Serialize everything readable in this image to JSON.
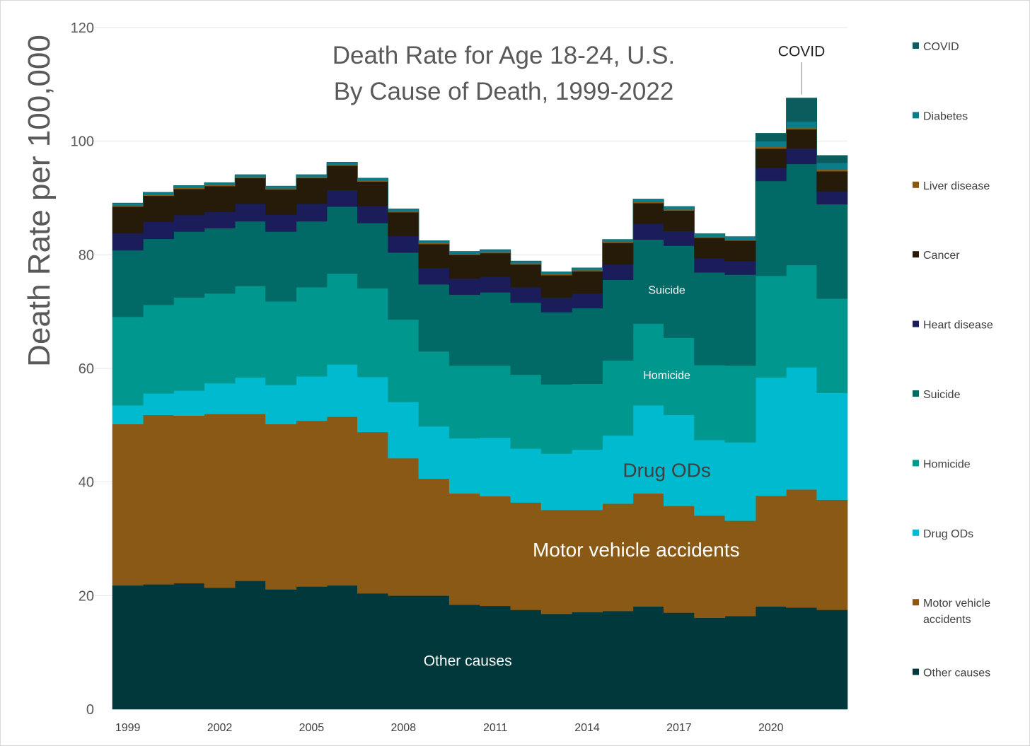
{
  "chart_data": {
    "type": "area",
    "title": [
      "Death Rate for Age 18-24, U.S.",
      "By Cause of Death, 1999-2022"
    ],
    "ylabel": "Death Rate per 100,000",
    "ylim": [
      0,
      120
    ],
    "yticks": [
      0,
      20,
      40,
      60,
      80,
      100,
      120
    ],
    "grid": true,
    "legend_position": "right",
    "x": [
      1999,
      2000,
      2001,
      2002,
      2003,
      2004,
      2005,
      2006,
      2007,
      2008,
      2009,
      2010,
      2011,
      2012,
      2013,
      2014,
      2015,
      2016,
      2017,
      2018,
      2019,
      2020,
      2021,
      2022
    ],
    "xtick_labels": [
      "1999",
      "2002",
      "2005",
      "2008",
      "2011",
      "2014",
      "2017",
      "2020"
    ],
    "series": [
      {
        "name": "Other causes",
        "color": "#00383b",
        "values": [
          21.8,
          22.0,
          22.2,
          21.4,
          22.6,
          21.1,
          21.6,
          21.8,
          20.4,
          20.0,
          20.0,
          18.4,
          18.2,
          17.5,
          16.8,
          17.1,
          17.3,
          18.1,
          17.0,
          16.1,
          16.4,
          18.1,
          17.9,
          17.5
        ]
      },
      {
        "name": "Motor vehicle accidents",
        "color": "#8a5915",
        "values": [
          28.4,
          29.8,
          29.5,
          30.6,
          29.4,
          29.1,
          29.2,
          29.7,
          28.4,
          24.2,
          20.6,
          19.6,
          19.3,
          18.9,
          18.3,
          18.0,
          18.9,
          19.9,
          18.8,
          18.0,
          16.8,
          19.5,
          20.8,
          19.4
        ]
      },
      {
        "name": "Drug ODs",
        "color": "#00bacf",
        "values": [
          3.3,
          3.8,
          4.4,
          5.4,
          6.4,
          6.9,
          7.8,
          9.2,
          9.7,
          9.9,
          9.2,
          9.7,
          10.3,
          9.5,
          9.9,
          10.6,
          12.0,
          15.5,
          16.0,
          13.3,
          13.8,
          20.8,
          21.5,
          18.8
        ]
      },
      {
        "name": "Homicide",
        "color": "#00978f",
        "values": [
          15.6,
          15.6,
          16.4,
          15.8,
          16.1,
          14.7,
          15.7,
          16.0,
          15.6,
          14.5,
          13.2,
          12.8,
          12.7,
          13.0,
          12.2,
          11.6,
          13.2,
          14.4,
          13.6,
          13.2,
          13.5,
          17.9,
          18.0,
          16.6
        ]
      },
      {
        "name": "Suicide",
        "color": "#016a66",
        "values": [
          11.7,
          11.6,
          11.6,
          11.5,
          11.4,
          12.3,
          11.6,
          11.8,
          11.5,
          11.8,
          11.8,
          12.5,
          12.9,
          12.7,
          12.7,
          13.3,
          14.2,
          14.8,
          16.2,
          16.3,
          16.0,
          16.7,
          17.8,
          16.6
        ]
      },
      {
        "name": "Heart disease",
        "color": "#1b1c5a",
        "values": [
          3.0,
          3.0,
          2.9,
          2.9,
          3.1,
          3.0,
          3.1,
          2.9,
          3.0,
          2.9,
          2.9,
          2.8,
          2.8,
          2.7,
          2.6,
          2.6,
          2.7,
          2.8,
          2.6,
          2.5,
          2.4,
          2.3,
          2.7,
          2.3
        ]
      },
      {
        "name": "Cancer",
        "color": "#261a09",
        "values": [
          4.7,
          4.6,
          4.6,
          4.5,
          4.5,
          4.4,
          4.5,
          4.3,
          4.3,
          4.2,
          4.2,
          4.2,
          4.1,
          4.0,
          3.9,
          3.9,
          3.8,
          3.6,
          3.6,
          3.6,
          3.6,
          3.4,
          3.4,
          3.5
        ]
      },
      {
        "name": "Liver disease",
        "color": "#8a5915",
        "values": [
          0.2,
          0.2,
          0.2,
          0.2,
          0.2,
          0.2,
          0.2,
          0.2,
          0.2,
          0.2,
          0.2,
          0.2,
          0.2,
          0.2,
          0.2,
          0.2,
          0.2,
          0.2,
          0.2,
          0.2,
          0.2,
          0.3,
          0.3,
          0.3
        ]
      },
      {
        "name": "Diabetes",
        "color": "#0c7c8a",
        "values": [
          0.4,
          0.4,
          0.4,
          0.4,
          0.4,
          0.4,
          0.4,
          0.4,
          0.4,
          0.4,
          0.4,
          0.4,
          0.4,
          0.4,
          0.4,
          0.4,
          0.4,
          0.5,
          0.5,
          0.5,
          0.5,
          1.0,
          1.1,
          1.2
        ]
      },
      {
        "name": "COVID",
        "color": "#0b5d5d",
        "values": [
          0,
          0,
          0,
          0,
          0,
          0,
          0,
          0,
          0,
          0,
          0,
          0,
          0,
          0,
          0,
          0,
          0,
          0,
          0,
          0,
          0,
          1.4,
          4.1,
          1.3
        ]
      }
    ],
    "annotations": [
      {
        "text": "Other causes",
        "year": 2010.1,
        "y": 8.6,
        "size": "medium",
        "color": "#ffffff"
      },
      {
        "text": "Motor vehicle accidents",
        "year": 2015.6,
        "y": 28.1,
        "size": "large",
        "color": "#ffffff"
      },
      {
        "text": "Drug ODs",
        "year": 2016.6,
        "y": 42.1,
        "size": "large",
        "color": "#404040"
      },
      {
        "text": "Homicide",
        "year": 2016.6,
        "y": 58.8,
        "size": "small",
        "color": "#ffffff"
      },
      {
        "text": "Suicide",
        "year": 2016.6,
        "y": 73.8,
        "size": "small",
        "color": "#ffffff"
      },
      {
        "text": "COVID",
        "year": 2021,
        "y": 115.9,
        "size": "medium",
        "color": "#222222",
        "leader_to": 108.2
      }
    ]
  }
}
